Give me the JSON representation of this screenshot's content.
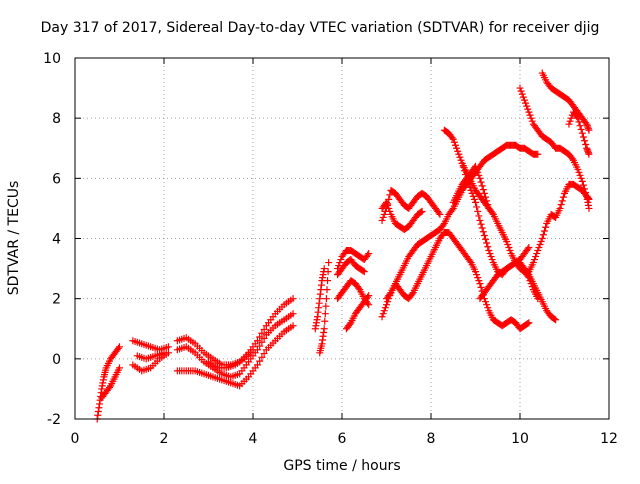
{
  "chart_data": {
    "type": "scatter",
    "title": "Day 317 of 2017, Sidereal Day-to-day VTEC variation (SDTVAR) for receiver djig",
    "xlabel": "GPS time / hours",
    "ylabel": "SDTVAR / TECUs",
    "xlim": [
      0,
      12
    ],
    "ylim": [
      -2,
      10
    ],
    "xticks": [
      "0",
      "2",
      "4",
      "6",
      "8",
      "10",
      "12"
    ],
    "yticks": [
      "-2",
      "0",
      "2",
      "4",
      "6",
      "8",
      "10"
    ],
    "grid": true,
    "marker": "+",
    "color": "#ff0000",
    "traces": [
      [
        [
          0.5,
          -2.0
        ],
        [
          0.55,
          -1.5
        ],
        [
          0.6,
          -1.0
        ],
        [
          0.65,
          -0.6
        ],
        [
          0.7,
          -0.3
        ],
        [
          0.8,
          0.0
        ],
        [
          0.9,
          0.2
        ],
        [
          1.0,
          0.4
        ]
      ],
      [
        [
          0.6,
          -1.3
        ],
        [
          0.7,
          -1.1
        ],
        [
          0.8,
          -0.9
        ],
        [
          0.9,
          -0.6
        ],
        [
          1.0,
          -0.3
        ]
      ],
      [
        [
          1.3,
          0.6
        ],
        [
          1.5,
          0.5
        ],
        [
          1.7,
          0.4
        ],
        [
          1.9,
          0.3
        ],
        [
          2.1,
          0.4
        ]
      ],
      [
        [
          1.3,
          -0.2
        ],
        [
          1.5,
          -0.4
        ],
        [
          1.7,
          -0.3
        ],
        [
          1.9,
          0.0
        ],
        [
          2.1,
          0.2
        ]
      ],
      [
        [
          1.4,
          0.1
        ],
        [
          1.6,
          0.0
        ],
        [
          1.8,
          0.1
        ],
        [
          2.0,
          0.2
        ]
      ],
      [
        [
          2.3,
          0.6
        ],
        [
          2.5,
          0.7
        ],
        [
          2.7,
          0.5
        ],
        [
          2.9,
          0.2
        ],
        [
          3.1,
          0.0
        ],
        [
          3.3,
          -0.2
        ],
        [
          3.5,
          -0.2
        ],
        [
          3.7,
          -0.1
        ],
        [
          3.9,
          0.2
        ],
        [
          4.1,
          0.6
        ],
        [
          4.3,
          1.1
        ],
        [
          4.5,
          1.5
        ],
        [
          4.7,
          1.8
        ],
        [
          4.9,
          2.0
        ]
      ],
      [
        [
          2.3,
          0.3
        ],
        [
          2.5,
          0.4
        ],
        [
          2.7,
          0.2
        ],
        [
          2.9,
          -0.1
        ],
        [
          3.1,
          -0.3
        ],
        [
          3.3,
          -0.5
        ],
        [
          3.5,
          -0.6
        ],
        [
          3.7,
          -0.5
        ],
        [
          3.9,
          -0.1
        ],
        [
          4.1,
          0.3
        ],
        [
          4.3,
          0.8
        ],
        [
          4.5,
          1.1
        ],
        [
          4.7,
          1.3
        ],
        [
          4.9,
          1.5
        ]
      ],
      [
        [
          2.3,
          -0.4
        ],
        [
          2.5,
          -0.4
        ],
        [
          2.7,
          -0.4
        ],
        [
          2.9,
          -0.5
        ],
        [
          3.1,
          -0.6
        ],
        [
          3.3,
          -0.7
        ],
        [
          3.5,
          -0.8
        ],
        [
          3.7,
          -0.9
        ],
        [
          3.9,
          -0.6
        ],
        [
          4.1,
          -0.2
        ],
        [
          4.3,
          0.3
        ],
        [
          4.5,
          0.6
        ],
        [
          4.7,
          0.9
        ],
        [
          4.9,
          1.1
        ]
      ],
      [
        [
          3.0,
          -0.1
        ],
        [
          3.2,
          -0.3
        ],
        [
          3.4,
          -0.3
        ],
        [
          3.6,
          -0.2
        ],
        [
          3.8,
          0.0
        ],
        [
          4.0,
          0.3
        ]
      ],
      [
        [
          5.5,
          0.2
        ],
        [
          5.55,
          0.5
        ],
        [
          5.6,
          1.0
        ],
        [
          5.65,
          2.0
        ],
        [
          5.7,
          3.2
        ]
      ],
      [
        [
          5.4,
          1.0
        ],
        [
          5.45,
          1.4
        ],
        [
          5.5,
          2.0
        ],
        [
          5.55,
          2.6
        ],
        [
          5.6,
          3.0
        ]
      ],
      [
        [
          5.9,
          2.0
        ],
        [
          6.0,
          2.2
        ],
        [
          6.1,
          2.4
        ],
        [
          6.2,
          2.6
        ],
        [
          6.3,
          2.5
        ],
        [
          6.4,
          2.3
        ],
        [
          6.5,
          2.0
        ],
        [
          6.6,
          1.8
        ]
      ],
      [
        [
          5.9,
          3.0
        ],
        [
          6.0,
          3.4
        ],
        [
          6.1,
          3.6
        ],
        [
          6.2,
          3.6
        ],
        [
          6.3,
          3.5
        ],
        [
          6.4,
          3.4
        ],
        [
          6.5,
          3.3
        ],
        [
          6.6,
          3.5
        ]
      ],
      [
        [
          5.9,
          2.8
        ],
        [
          6.0,
          3.0
        ],
        [
          6.1,
          3.2
        ],
        [
          6.2,
          3.3
        ],
        [
          6.3,
          3.1
        ],
        [
          6.4,
          3.0
        ],
        [
          6.5,
          2.9
        ]
      ],
      [
        [
          6.1,
          1.0
        ],
        [
          6.2,
          1.2
        ],
        [
          6.3,
          1.5
        ],
        [
          6.4,
          1.7
        ],
        [
          6.5,
          1.9
        ],
        [
          6.6,
          2.1
        ]
      ],
      [
        [
          6.9,
          4.6
        ],
        [
          7.0,
          5.0
        ],
        [
          7.1,
          5.6
        ],
        [
          7.2,
          5.5
        ],
        [
          7.3,
          5.3
        ],
        [
          7.4,
          5.1
        ],
        [
          7.5,
          5.0
        ],
        [
          7.6,
          5.2
        ],
        [
          7.7,
          5.4
        ],
        [
          7.8,
          5.5
        ],
        [
          7.9,
          5.4
        ],
        [
          8.0,
          5.2
        ],
        [
          8.1,
          5.0
        ],
        [
          8.2,
          4.8
        ]
      ],
      [
        [
          6.9,
          5.0
        ],
        [
          7.0,
          5.2
        ],
        [
          7.1,
          4.8
        ],
        [
          7.2,
          4.5
        ],
        [
          7.3,
          4.4
        ],
        [
          7.4,
          4.3
        ],
        [
          7.5,
          4.4
        ],
        [
          7.6,
          4.6
        ],
        [
          7.7,
          4.8
        ],
        [
          7.8,
          4.9
        ]
      ],
      [
        [
          6.9,
          1.4
        ],
        [
          7.0,
          1.8
        ],
        [
          7.1,
          2.2
        ],
        [
          7.2,
          2.5
        ],
        [
          7.3,
          2.8
        ],
        [
          7.4,
          3.1
        ],
        [
          7.5,
          3.4
        ],
        [
          7.6,
          3.6
        ],
        [
          7.7,
          3.8
        ],
        [
          7.8,
          3.9
        ],
        [
          7.9,
          4.0
        ],
        [
          8.0,
          4.1
        ],
        [
          8.1,
          4.2
        ],
        [
          8.2,
          4.3
        ],
        [
          8.3,
          4.5
        ],
        [
          8.4,
          4.8
        ],
        [
          8.5,
          5.0
        ],
        [
          8.6,
          5.3
        ],
        [
          8.7,
          5.6
        ],
        [
          8.8,
          5.8
        ],
        [
          8.9,
          6.0
        ],
        [
          9.0,
          6.2
        ],
        [
          9.1,
          6.4
        ],
        [
          9.2,
          6.6
        ],
        [
          9.3,
          6.7
        ],
        [
          9.4,
          6.8
        ],
        [
          9.5,
          6.9
        ],
        [
          9.6,
          7.0
        ],
        [
          9.7,
          7.1
        ],
        [
          9.8,
          7.1
        ],
        [
          9.9,
          7.1
        ],
        [
          10.0,
          7.0
        ],
        [
          10.1,
          7.0
        ],
        [
          10.2,
          6.9
        ],
        [
          10.3,
          6.8
        ],
        [
          10.4,
          6.8
        ]
      ],
      [
        [
          7.0,
          2.0
        ],
        [
          7.1,
          2.2
        ],
        [
          7.2,
          2.5
        ],
        [
          7.3,
          2.3
        ],
        [
          7.4,
          2.1
        ],
        [
          7.5,
          2.0
        ],
        [
          7.6,
          2.2
        ],
        [
          7.7,
          2.5
        ],
        [
          7.8,
          2.8
        ],
        [
          7.9,
          3.1
        ],
        [
          8.0,
          3.4
        ],
        [
          8.1,
          3.7
        ],
        [
          8.2,
          4.0
        ],
        [
          8.3,
          4.2
        ],
        [
          8.4,
          4.2
        ],
        [
          8.5,
          4.0
        ],
        [
          8.6,
          3.8
        ],
        [
          8.7,
          3.6
        ],
        [
          8.8,
          3.4
        ],
        [
          8.9,
          3.2
        ],
        [
          9.0,
          2.9
        ],
        [
          9.1,
          2.5
        ],
        [
          9.2,
          2.0
        ],
        [
          9.3,
          1.6
        ],
        [
          9.4,
          1.3
        ],
        [
          9.5,
          1.2
        ],
        [
          9.6,
          1.1
        ],
        [
          9.7,
          1.2
        ],
        [
          9.8,
          1.3
        ],
        [
          9.9,
          1.2
        ],
        [
          10.0,
          1.0
        ],
        [
          10.1,
          1.1
        ],
        [
          10.2,
          1.2
        ]
      ],
      [
        [
          8.3,
          7.6
        ],
        [
          8.4,
          7.5
        ],
        [
          8.5,
          7.3
        ],
        [
          8.6,
          6.9
        ],
        [
          8.7,
          6.5
        ],
        [
          8.8,
          6.0
        ],
        [
          8.9,
          5.6
        ],
        [
          9.0,
          5.2
        ],
        [
          9.1,
          4.6
        ],
        [
          9.2,
          4.1
        ],
        [
          9.3,
          3.6
        ],
        [
          9.4,
          3.2
        ],
        [
          9.5,
          2.9
        ],
        [
          9.6,
          2.8
        ],
        [
          9.7,
          3.0
        ],
        [
          9.8,
          3.1
        ],
        [
          9.9,
          3.2
        ],
        [
          10.0,
          3.2
        ],
        [
          10.1,
          3.0
        ],
        [
          10.2,
          2.8
        ],
        [
          10.3,
          2.5
        ],
        [
          10.4,
          2.2
        ],
        [
          10.5,
          1.9
        ],
        [
          10.6,
          1.6
        ],
        [
          10.7,
          1.4
        ],
        [
          10.8,
          1.3
        ]
      ],
      [
        [
          8.7,
          6.5
        ],
        [
          8.8,
          6.2
        ],
        [
          8.9,
          5.9
        ],
        [
          9.0,
          5.6
        ],
        [
          9.1,
          5.4
        ],
        [
          9.2,
          5.2
        ],
        [
          9.3,
          5.0
        ],
        [
          9.4,
          4.8
        ],
        [
          9.5,
          4.5
        ],
        [
          9.6,
          4.2
        ],
        [
          9.7,
          3.9
        ],
        [
          9.8,
          3.5
        ],
        [
          9.9,
          3.2
        ],
        [
          10.0,
          3.0
        ],
        [
          10.1,
          2.9
        ],
        [
          10.2,
          2.7
        ],
        [
          10.3,
          2.3
        ],
        [
          10.4,
          2.0
        ]
      ],
      [
        [
          8.5,
          5.2
        ],
        [
          8.6,
          5.5
        ],
        [
          8.7,
          5.8
        ],
        [
          8.8,
          6.0
        ],
        [
          8.9,
          6.2
        ],
        [
          9.0,
          6.4
        ],
        [
          9.1,
          6.0
        ],
        [
          9.2,
          5.5
        ],
        [
          9.3,
          5.0
        ],
        [
          9.4,
          4.8
        ]
      ],
      [
        [
          9.1,
          2.0
        ],
        [
          9.2,
          2.2
        ],
        [
          9.3,
          2.4
        ],
        [
          9.4,
          2.6
        ],
        [
          9.5,
          2.8
        ],
        [
          9.6,
          2.9
        ],
        [
          9.7,
          3.0
        ],
        [
          9.8,
          3.1
        ],
        [
          9.9,
          3.2
        ],
        [
          10.0,
          3.3
        ],
        [
          10.1,
          3.5
        ],
        [
          10.2,
          3.7
        ]
      ],
      [
        [
          10.0,
          9.0
        ],
        [
          10.1,
          8.6
        ],
        [
          10.2,
          8.2
        ],
        [
          10.3,
          7.8
        ],
        [
          10.4,
          7.6
        ],
        [
          10.5,
          7.4
        ],
        [
          10.6,
          7.3
        ],
        [
          10.7,
          7.2
        ],
        [
          10.8,
          7.0
        ],
        [
          10.9,
          7.0
        ],
        [
          11.0,
          6.9
        ],
        [
          11.1,
          6.8
        ],
        [
          11.2,
          6.6
        ],
        [
          11.3,
          6.3
        ],
        [
          11.4,
          5.9
        ],
        [
          11.5,
          5.4
        ],
        [
          11.55,
          5.0
        ]
      ],
      [
        [
          10.5,
          9.5
        ],
        [
          10.6,
          9.2
        ],
        [
          10.7,
          9.0
        ],
        [
          10.8,
          8.9
        ],
        [
          10.9,
          8.8
        ],
        [
          11.0,
          8.7
        ],
        [
          11.1,
          8.6
        ],
        [
          11.2,
          8.4
        ],
        [
          11.3,
          8.2
        ],
        [
          11.4,
          8.0
        ],
        [
          11.5,
          7.8
        ],
        [
          11.55,
          7.6
        ]
      ],
      [
        [
          10.2,
          2.9
        ],
        [
          10.3,
          3.2
        ],
        [
          10.4,
          3.6
        ],
        [
          10.5,
          4.0
        ],
        [
          10.6,
          4.5
        ],
        [
          10.7,
          4.8
        ],
        [
          10.8,
          4.7
        ],
        [
          10.9,
          5.0
        ],
        [
          11.0,
          5.5
        ],
        [
          11.1,
          5.8
        ],
        [
          11.2,
          5.8
        ],
        [
          11.3,
          5.7
        ],
        [
          11.4,
          5.6
        ],
        [
          11.5,
          5.4
        ],
        [
          11.55,
          5.3
        ]
      ],
      [
        [
          11.1,
          7.8
        ],
        [
          11.2,
          8.2
        ],
        [
          11.3,
          8.0
        ],
        [
          11.4,
          7.5
        ],
        [
          11.5,
          7.0
        ],
        [
          11.55,
          6.8
        ]
      ]
    ]
  }
}
